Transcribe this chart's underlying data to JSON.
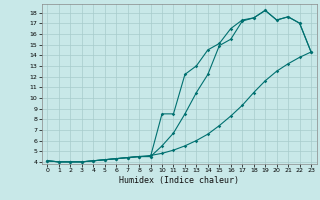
{
  "xlabel": "Humidex (Indice chaleur)",
  "bg_color": "#c8e8e8",
  "grid_color": "#a8cccc",
  "line_color": "#007070",
  "xlim": [
    -0.5,
    23.5
  ],
  "ylim": [
    3.8,
    18.8
  ],
  "xticks": [
    0,
    1,
    2,
    3,
    4,
    5,
    6,
    7,
    8,
    9,
    10,
    11,
    12,
    13,
    14,
    15,
    16,
    17,
    18,
    19,
    20,
    21,
    22,
    23
  ],
  "yticks": [
    4,
    5,
    6,
    7,
    8,
    9,
    10,
    11,
    12,
    13,
    14,
    15,
    16,
    17,
    18
  ],
  "line1_x": [
    0,
    1,
    2,
    3,
    4,
    5,
    6,
    7,
    8,
    9,
    10,
    11,
    12,
    13,
    14,
    15,
    16,
    17,
    18,
    19,
    20,
    21,
    22,
    23
  ],
  "line1_y": [
    4.1,
    4.0,
    4.0,
    4.0,
    4.1,
    4.2,
    4.3,
    4.4,
    4.5,
    4.5,
    5.5,
    6.7,
    8.5,
    10.5,
    12.2,
    14.9,
    15.5,
    17.2,
    17.5,
    18.2,
    17.3,
    17.6,
    17.0,
    14.3
  ],
  "line2_x": [
    0,
    1,
    2,
    3,
    4,
    5,
    6,
    7,
    8,
    9,
    10,
    11,
    12,
    13,
    14,
    15,
    16,
    17,
    18,
    19,
    20,
    21,
    22,
    23
  ],
  "line2_y": [
    4.1,
    4.0,
    4.0,
    4.0,
    4.1,
    4.2,
    4.3,
    4.4,
    4.5,
    4.6,
    4.8,
    5.1,
    5.5,
    6.0,
    6.6,
    7.4,
    8.3,
    9.3,
    10.5,
    11.6,
    12.5,
    13.2,
    13.8,
    14.3
  ],
  "line3_x": [
    0,
    1,
    2,
    3,
    4,
    5,
    6,
    7,
    8,
    9,
    10,
    11,
    12,
    13,
    14,
    15,
    16,
    17,
    18,
    19,
    20,
    21,
    22,
    23
  ],
  "line3_y": [
    4.1,
    4.0,
    4.0,
    4.0,
    4.1,
    4.2,
    4.3,
    4.4,
    4.5,
    4.5,
    8.5,
    8.5,
    12.2,
    13.0,
    14.5,
    15.1,
    16.5,
    17.3,
    17.5,
    18.2,
    17.3,
    17.6,
    17.0,
    14.3
  ]
}
